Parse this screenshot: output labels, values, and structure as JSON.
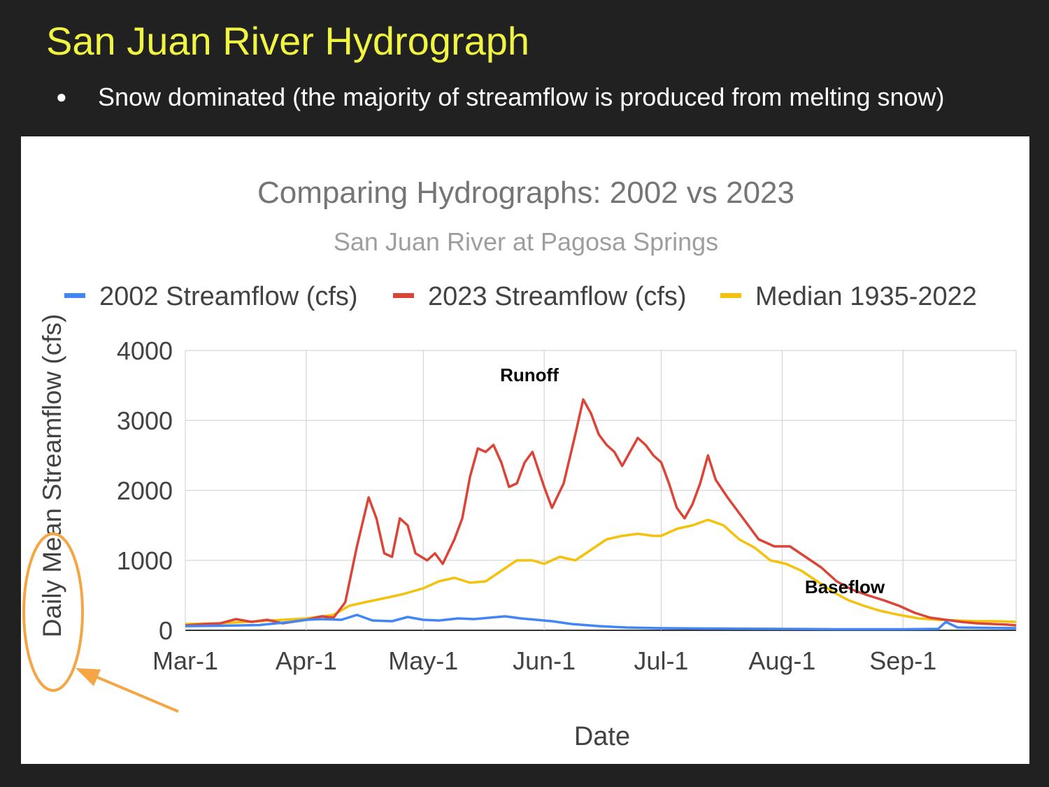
{
  "slide": {
    "title": "San Juan River Hydrograph",
    "bullet": "Snow dominated (the majority of streamflow is produced from melting snow)"
  },
  "colors": {
    "background": "#212121",
    "title": "#f0f542",
    "series_2002": "#4285f4",
    "series_2023": "#db4437",
    "series_median": "#f4c20d",
    "annotation_ring": "#f6a545"
  },
  "annotations": {
    "runoff": "Runoff",
    "baseflow": "Baseflow"
  },
  "chart_data": {
    "type": "line",
    "title": "Comparing Hydrographs: 2002 vs 2023",
    "subtitle": "San Juan River at Pagosa Springs",
    "xlabel": "Date",
    "ylabel": "Daily Mean Streamflow (cfs)",
    "ylim": [
      0,
      4000
    ],
    "yticks": [
      0,
      1000,
      2000,
      3000,
      4000
    ],
    "xticks": [
      "Mar-1",
      "Apr-1",
      "May-1",
      "Jun-1",
      "Jul-1",
      "Aug-1",
      "Sep-1"
    ],
    "xrange": [
      "Mar-1",
      "Sep-30"
    ],
    "grid": true,
    "legend": "top",
    "series": [
      {
        "name": "2002 Streamflow (cfs)",
        "color": "#4285f4",
        "points": [
          [
            "Mar-1",
            60
          ],
          [
            "Mar-10",
            65
          ],
          [
            "Mar-20",
            75
          ],
          [
            "Mar-28",
            120
          ],
          [
            "Apr-1",
            150
          ],
          [
            "Apr-5",
            160
          ],
          [
            "Apr-10",
            150
          ],
          [
            "Apr-14",
            220
          ],
          [
            "Apr-18",
            140
          ],
          [
            "Apr-23",
            130
          ],
          [
            "Apr-27",
            190
          ],
          [
            "May-1",
            150
          ],
          [
            "May-5",
            140
          ],
          [
            "May-10",
            170
          ],
          [
            "May-14",
            160
          ],
          [
            "May-18",
            180
          ],
          [
            "May-22",
            200
          ],
          [
            "May-26",
            170
          ],
          [
            "May-30",
            150
          ],
          [
            "Jun-3",
            130
          ],
          [
            "Jun-8",
            90
          ],
          [
            "Jun-15",
            60
          ],
          [
            "Jun-22",
            40
          ],
          [
            "Jul-1",
            30
          ],
          [
            "Jul-15",
            25
          ],
          [
            "Aug-1",
            20
          ],
          [
            "Aug-15",
            15
          ],
          [
            "Sep-1",
            15
          ],
          [
            "Sep-10",
            20
          ],
          [
            "Sep-12",
            120
          ],
          [
            "Sep-15",
            40
          ],
          [
            "Sep-30",
            30
          ]
        ]
      },
      {
        "name": "2023 Streamflow (cfs)",
        "color": "#db4437",
        "points": [
          [
            "Mar-1",
            70
          ],
          [
            "Mar-6",
            90
          ],
          [
            "Mar-10",
            100
          ],
          [
            "Mar-14",
            160
          ],
          [
            "Mar-18",
            120
          ],
          [
            "Mar-22",
            150
          ],
          [
            "Mar-26",
            100
          ],
          [
            "Apr-1",
            150
          ],
          [
            "Apr-5",
            200
          ],
          [
            "Apr-8",
            180
          ],
          [
            "Apr-11",
            400
          ],
          [
            "Apr-14",
            1200
          ],
          [
            "Apr-17",
            1900
          ],
          [
            "Apr-19",
            1600
          ],
          [
            "Apr-21",
            1100
          ],
          [
            "Apr-23",
            1050
          ],
          [
            "Apr-25",
            1600
          ],
          [
            "Apr-27",
            1500
          ],
          [
            "Apr-29",
            1100
          ],
          [
            "May-2",
            1000
          ],
          [
            "May-4",
            1100
          ],
          [
            "May-6",
            950
          ],
          [
            "May-9",
            1300
          ],
          [
            "May-11",
            1600
          ],
          [
            "May-13",
            2200
          ],
          [
            "May-15",
            2600
          ],
          [
            "May-17",
            2550
          ],
          [
            "May-19",
            2650
          ],
          [
            "May-21",
            2400
          ],
          [
            "May-23",
            2050
          ],
          [
            "May-25",
            2100
          ],
          [
            "May-27",
            2400
          ],
          [
            "May-29",
            2550
          ],
          [
            "Jun-1",
            2050
          ],
          [
            "Jun-3",
            1750
          ],
          [
            "Jun-6",
            2100
          ],
          [
            "Jun-9",
            2800
          ],
          [
            "Jun-11",
            3300
          ],
          [
            "Jun-13",
            3100
          ],
          [
            "Jun-15",
            2800
          ],
          [
            "Jun-17",
            2650
          ],
          [
            "Jun-19",
            2550
          ],
          [
            "Jun-21",
            2350
          ],
          [
            "Jun-23",
            2550
          ],
          [
            "Jun-25",
            2750
          ],
          [
            "Jun-27",
            2650
          ],
          [
            "Jun-29",
            2500
          ],
          [
            "Jul-1",
            2400
          ],
          [
            "Jul-3",
            2100
          ],
          [
            "Jul-5",
            1750
          ],
          [
            "Jul-7",
            1600
          ],
          [
            "Jul-9",
            1800
          ],
          [
            "Jul-11",
            2100
          ],
          [
            "Jul-13",
            2500
          ],
          [
            "Jul-15",
            2150
          ],
          [
            "Jul-18",
            1900
          ],
          [
            "Jul-22",
            1600
          ],
          [
            "Jul-26",
            1300
          ],
          [
            "Jul-30",
            1200
          ],
          [
            "Aug-3",
            1200
          ],
          [
            "Aug-7",
            1050
          ],
          [
            "Aug-11",
            900
          ],
          [
            "Aug-15",
            700
          ],
          [
            "Aug-19",
            580
          ],
          [
            "Aug-23",
            500
          ],
          [
            "Aug-27",
            430
          ],
          [
            "Aug-31",
            350
          ],
          [
            "Sep-4",
            250
          ],
          [
            "Sep-8",
            180
          ],
          [
            "Sep-12",
            150
          ],
          [
            "Sep-16",
            120
          ],
          [
            "Sep-20",
            100
          ],
          [
            "Sep-24",
            90
          ],
          [
            "Sep-28",
            80
          ],
          [
            "Sep-30",
            70
          ]
        ]
      },
      {
        "name": "Median 1935-2022",
        "color": "#f4c20d",
        "points": [
          [
            "Mar-1",
            90
          ],
          [
            "Mar-10",
            100
          ],
          [
            "Mar-20",
            130
          ],
          [
            "Apr-1",
            170
          ],
          [
            "Apr-8",
            220
          ],
          [
            "Apr-12",
            350
          ],
          [
            "Apr-16",
            400
          ],
          [
            "Apr-22",
            470
          ],
          [
            "Apr-26",
            520
          ],
          [
            "May-1",
            600
          ],
          [
            "May-5",
            700
          ],
          [
            "May-9",
            750
          ],
          [
            "May-13",
            680
          ],
          [
            "May-17",
            700
          ],
          [
            "May-21",
            850
          ],
          [
            "May-25",
            1000
          ],
          [
            "May-29",
            1000
          ],
          [
            "Jun-1",
            950
          ],
          [
            "Jun-5",
            1050
          ],
          [
            "Jun-9",
            1000
          ],
          [
            "Jun-13",
            1150
          ],
          [
            "Jun-17",
            1300
          ],
          [
            "Jun-21",
            1350
          ],
          [
            "Jun-25",
            1380
          ],
          [
            "Jun-29",
            1350
          ],
          [
            "Jul-1",
            1350
          ],
          [
            "Jul-5",
            1450
          ],
          [
            "Jul-9",
            1500
          ],
          [
            "Jul-13",
            1580
          ],
          [
            "Jul-17",
            1500
          ],
          [
            "Jul-21",
            1300
          ],
          [
            "Jul-25",
            1180
          ],
          [
            "Jul-29",
            1000
          ],
          [
            "Aug-2",
            950
          ],
          [
            "Aug-6",
            850
          ],
          [
            "Aug-10",
            700
          ],
          [
            "Aug-14",
            550
          ],
          [
            "Aug-18",
            430
          ],
          [
            "Aug-22",
            350
          ],
          [
            "Aug-26",
            280
          ],
          [
            "Aug-31",
            220
          ],
          [
            "Sep-5",
            170
          ],
          [
            "Sep-10",
            150
          ],
          [
            "Sep-15",
            140
          ],
          [
            "Sep-20",
            130
          ],
          [
            "Sep-25",
            130
          ],
          [
            "Sep-30",
            120
          ]
        ]
      }
    ]
  }
}
